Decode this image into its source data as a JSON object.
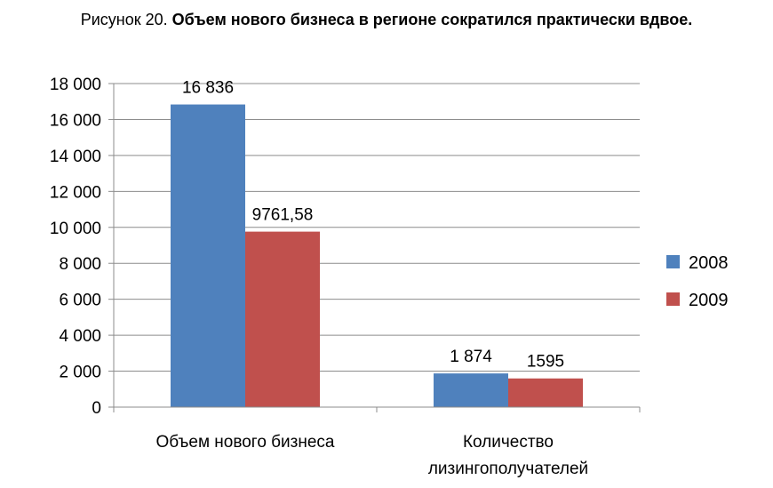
{
  "figure": {
    "number_label": "Рисунок 20.",
    "title_text": "Объем нового бизнеса в регионе сократился практически вдвое."
  },
  "chart_data": {
    "type": "bar",
    "categories": [
      "Объем нового бизнеса",
      "Количество лизингополучателей"
    ],
    "category_lines": [
      [
        "Объем нового бизнеса"
      ],
      [
        "Количество",
        "лизингополучателей"
      ]
    ],
    "series": [
      {
        "name": "2008",
        "values": [
          16836,
          1874
        ],
        "labels": [
          "16 836",
          "1 874"
        ],
        "color": "#4f81bd"
      },
      {
        "name": "2009",
        "values": [
          9761.58,
          1595
        ],
        "labels": [
          "9761,58",
          "1595"
        ],
        "color": "#c0504d"
      }
    ],
    "ylim": [
      0,
      18000
    ],
    "yticks": [
      0,
      2000,
      4000,
      6000,
      8000,
      10000,
      12000,
      14000,
      16000,
      18000
    ],
    "ytick_labels": [
      "0",
      "2 000",
      "4 000",
      "6 000",
      "8 000",
      "10 000",
      "12 000",
      "14 000",
      "16 000",
      "18 000"
    ],
    "xlabel": "",
    "ylabel": "",
    "grid": true,
    "legend_position": "right"
  }
}
